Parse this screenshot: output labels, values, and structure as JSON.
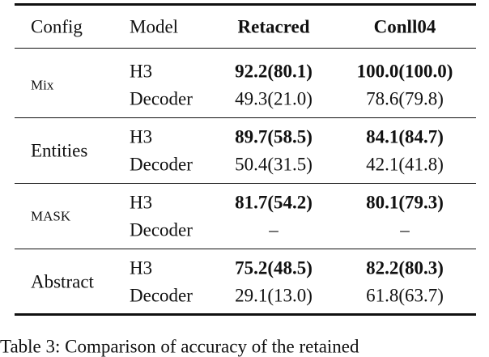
{
  "table": {
    "header": [
      "Config",
      "Model",
      "Retacred",
      "Conll04"
    ],
    "groups": [
      {
        "config": "Mix",
        "rows": [
          [
            "H3",
            "92.2(80.1)",
            "100.0(100.0)"
          ],
          [
            "Decoder",
            "49.3(21.0)",
            "78.6(79.8)"
          ]
        ]
      },
      {
        "config": "Entities",
        "rows": [
          [
            "H3",
            "89.7(58.5)",
            "84.1(84.7)"
          ],
          [
            "Decoder",
            "50.4(31.5)",
            "42.1(41.8)"
          ]
        ]
      },
      {
        "config": "MASK",
        "rows": [
          [
            "H3",
            "81.7(54.2)",
            "80.1(79.3)"
          ],
          [
            "Decoder",
            "–",
            "–"
          ]
        ]
      },
      {
        "config": "Abstract",
        "rows": [
          [
            "H3",
            "75.2(48.5)",
            "82.2(80.3)"
          ],
          [
            "Decoder",
            "29.1(13.0)",
            "61.8(63.7)"
          ]
        ]
      }
    ]
  },
  "caption": "Table 3: Comparison of accuracy of the retained"
}
